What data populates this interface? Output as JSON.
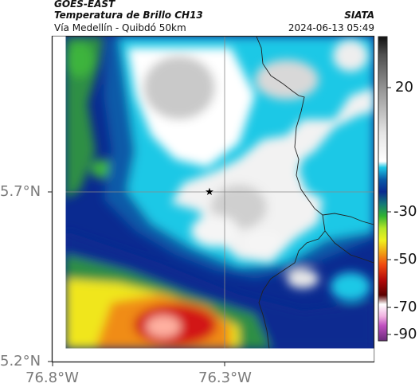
{
  "header": {
    "satellite": "GOES-EAST",
    "product": "Temperatura de Brillo CH13",
    "region": "Vía Medellín - Quibdó 50km",
    "source": "SIATA",
    "datetime": "2024-06-13 05:49"
  },
  "axes": {
    "x_ticks": [
      {
        "label": "76.8°W",
        "value": -76.8
      },
      {
        "label": "76.3°W",
        "value": -76.3
      }
    ],
    "y_ticks": [
      {
        "label": "5.7°N",
        "value": 5.7
      },
      {
        "label": "5.2°N",
        "value": 5.2
      }
    ]
  },
  "colorbar": {
    "labels": [
      "20",
      "-30",
      "-50",
      "-70",
      "-90"
    ],
    "values": [
      20,
      -30,
      -50,
      -70,
      -90
    ],
    "colors": {
      "black": "#111111",
      "gray": "#9a9a9a",
      "white_gray": "#e8e8e8",
      "cyan": "#1ec8e6",
      "blue": "#0a5aa8",
      "navy": "#0a2a90",
      "green": "#3cb43c",
      "yellow": "#f0e61e",
      "orange": "#f08c14",
      "red": "#d21414",
      "dark_red": "#5a0000",
      "magenta": "#c050c0"
    }
  },
  "map": {
    "marker_icon": "star-icon"
  }
}
